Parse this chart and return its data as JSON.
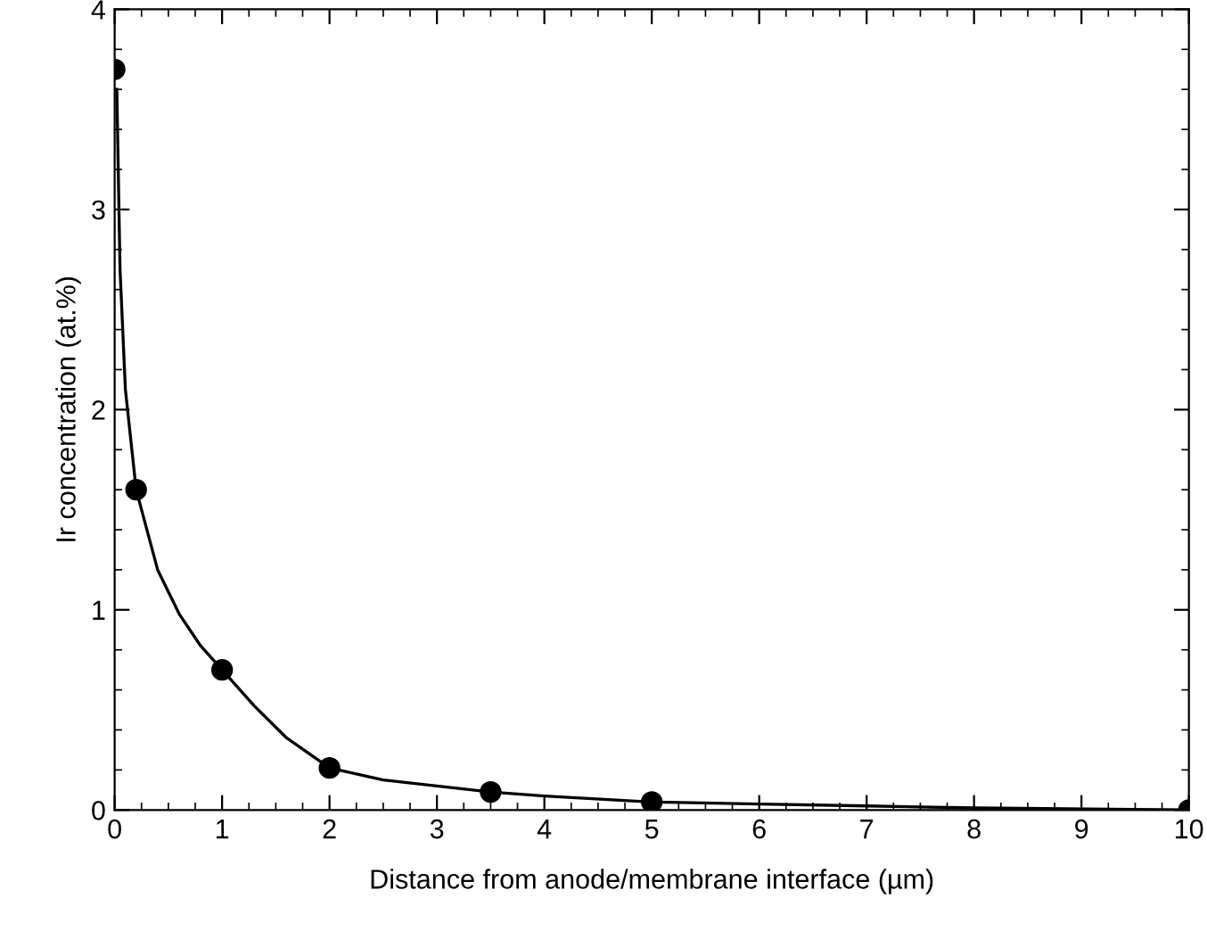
{
  "chart_data": {
    "type": "scatter",
    "xlabel": "Distance from anode/membrane interface (µm)",
    "ylabel": "Ir concentration (at.%)",
    "xlim": [
      0,
      10
    ],
    "ylim": [
      0,
      4
    ],
    "xticks": [
      0,
      1,
      2,
      3,
      4,
      5,
      6,
      7,
      8,
      9,
      10
    ],
    "yticks": [
      0,
      1,
      2,
      3,
      4
    ],
    "grid": false,
    "legend": false,
    "marker": "circle",
    "series": [
      {
        "color": "#000000",
        "x": [
          0,
          0.2,
          1,
          2,
          3.5,
          5,
          10
        ],
        "values": [
          3.7,
          1.6,
          0.7,
          0.21,
          0.09,
          0.04,
          0
        ]
      },
      {
        "type": "line",
        "color": "#000000",
        "line_style": "solid",
        "marker": "none",
        "x": [
          0.02,
          0.05,
          0.1,
          0.2,
          0.4,
          0.6,
          0.8,
          1,
          1.3,
          1.6,
          2,
          2.5,
          3,
          3.5,
          4,
          5,
          6,
          7,
          8,
          10
        ],
        "values": [
          3.6,
          2.7,
          2.1,
          1.6,
          1.2,
          0.98,
          0.82,
          0.7,
          0.52,
          0.36,
          0.21,
          0.15,
          0.12,
          0.09,
          0.07,
          0.04,
          0.03,
          0.02,
          0.01,
          0
        ]
      }
    ]
  }
}
